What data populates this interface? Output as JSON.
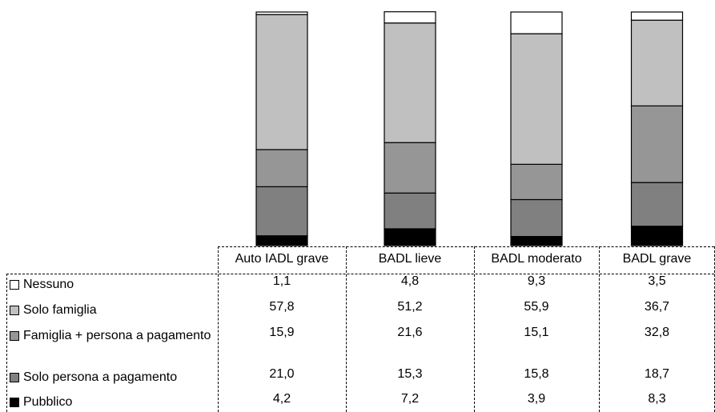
{
  "chart_data": {
    "type": "bar",
    "stacked": true,
    "ylim": [
      0,
      100
    ],
    "grid": false,
    "categories": [
      "Auto IADL grave",
      "BADL lieve",
      "BADL moderato",
      "BADL grave"
    ],
    "series": [
      {
        "name": "Nessuno",
        "color": "#ffffff",
        "values": [
          1.1,
          4.8,
          9.3,
          3.5
        ],
        "labels": [
          "1,1",
          "4,8",
          "9,3",
          "3,5"
        ]
      },
      {
        "name": "Solo famiglia",
        "color": "#c0c0c0",
        "values": [
          57.8,
          51.2,
          55.9,
          36.7
        ],
        "labels": [
          "57,8",
          "51,2",
          "55,9",
          "36,7"
        ]
      },
      {
        "name": "Famiglia + persona a pagamento",
        "color": "#969696",
        "values": [
          15.9,
          21.6,
          15.1,
          32.8
        ],
        "labels": [
          "15,9",
          "21,6",
          "15,1",
          "32,8"
        ]
      },
      {
        "name": "Solo persona a pagamento",
        "color": "#808080",
        "values": [
          21.0,
          15.3,
          15.8,
          18.7
        ],
        "labels": [
          "21,0",
          "15,3",
          "15,8",
          "18,7"
        ]
      },
      {
        "name": "Pubblico",
        "color": "#000000",
        "values": [
          4.2,
          7.2,
          3.9,
          8.3
        ],
        "labels": [
          "4,2",
          "7,2",
          "3,9",
          "8,3"
        ]
      }
    ]
  }
}
